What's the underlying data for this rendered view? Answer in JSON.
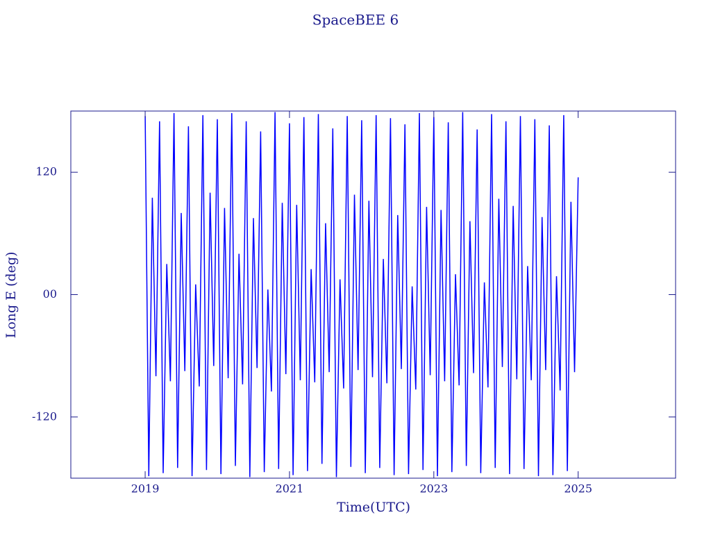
{
  "chart_data": {
    "type": "line",
    "title": "SpaceBEE 6",
    "xlabel": "Time(UTC)",
    "ylabel": "Long E (deg)",
    "xlim": [
      2017.97,
      2026.35
    ],
    "xticks": [
      2019,
      2021,
      2023,
      2025
    ],
    "ylim": [
      -180,
      180
    ],
    "yticks": [
      -120,
      {
        "value": 0,
        "label": "00"
      },
      120
    ],
    "series": [
      {
        "name": "SpaceBEE 6",
        "color": "#0000ff",
        "x": [
          2019,
          2019.05,
          2019.1,
          2019.15,
          2019.2,
          2019.25,
          2019.3,
          2019.35,
          2019.4,
          2019.45,
          2019.5,
          2019.55,
          2019.6,
          2019.65,
          2019.7,
          2019.75,
          2019.8,
          2019.85,
          2019.9,
          2019.95,
          2020,
          2020.05,
          2020.1,
          2020.15,
          2020.2,
          2020.25,
          2020.3,
          2020.35,
          2020.4,
          2020.45,
          2020.5,
          2020.55,
          2020.6,
          2020.65,
          2020.7,
          2020.75,
          2020.8,
          2020.85,
          2020.9,
          2020.95,
          2021,
          2021.05,
          2021.1,
          2021.15,
          2021.2,
          2021.25,
          2021.3,
          2021.35,
          2021.4,
          2021.45,
          2021.5,
          2021.55,
          2021.6,
          2021.65,
          2021.7,
          2021.75,
          2021.8,
          2021.85,
          2021.9,
          2021.95,
          2022,
          2022.05,
          2022.1,
          2022.15,
          2022.2,
          2022.25,
          2022.3,
          2022.35,
          2022.4,
          2022.45,
          2022.5,
          2022.55,
          2022.6,
          2022.65,
          2022.7,
          2022.75,
          2022.8,
          2022.85,
          2022.9,
          2022.95,
          2023,
          2023.05,
          2023.1,
          2023.15,
          2023.2,
          2023.25,
          2023.3,
          2023.35,
          2023.4,
          2023.45,
          2023.5,
          2023.55,
          2023.6,
          2023.65,
          2023.7,
          2023.75,
          2023.8,
          2023.85,
          2023.9,
          2023.95,
          2024,
          2024.05,
          2024.1,
          2024.15,
          2024.2,
          2024.25,
          2024.3,
          2024.35,
          2024.4,
          2024.45,
          2024.5,
          2024.55,
          2024.6,
          2024.65,
          2024.7,
          2024.75,
          2024.8,
          2024.85,
          2024.9,
          2024.95,
          2025
        ],
        "values": [
          175,
          -178,
          95,
          -80,
          170,
          -175,
          30,
          -85,
          178,
          -170,
          80,
          -75,
          165,
          -178,
          10,
          -90,
          176,
          -172,
          100,
          -70,
          172,
          -176,
          85,
          -82,
          178,
          -168,
          40,
          -88,
          170,
          -179,
          75,
          -72,
          160,
          -174,
          5,
          -95,
          179,
          -171,
          90,
          -78,
          168,
          -177,
          88,
          -84,
          174,
          -173,
          25,
          -86,
          177,
          -166,
          70,
          -76,
          163,
          -179,
          15,
          -92,
          175,
          -169,
          98,
          -74,
          171,
          -175,
          92,
          -81,
          176,
          -170,
          35,
          -87,
          173,
          -177,
          78,
          -73,
          167,
          -176,
          8,
          -93,
          178,
          -172,
          86,
          -79,
          174,
          -178,
          83,
          -85,
          169,
          -174,
          20,
          -89,
          179,
          -168,
          72,
          -77,
          162,
          -175,
          12,
          -91,
          177,
          -170,
          94,
          -71,
          170,
          -176,
          87,
          -83,
          175,
          -171,
          28,
          -84,
          172,
          -178,
          76,
          -74,
          166,
          -177,
          18,
          -94,
          176,
          -173,
          91,
          -76,
          115
        ]
      }
    ]
  }
}
